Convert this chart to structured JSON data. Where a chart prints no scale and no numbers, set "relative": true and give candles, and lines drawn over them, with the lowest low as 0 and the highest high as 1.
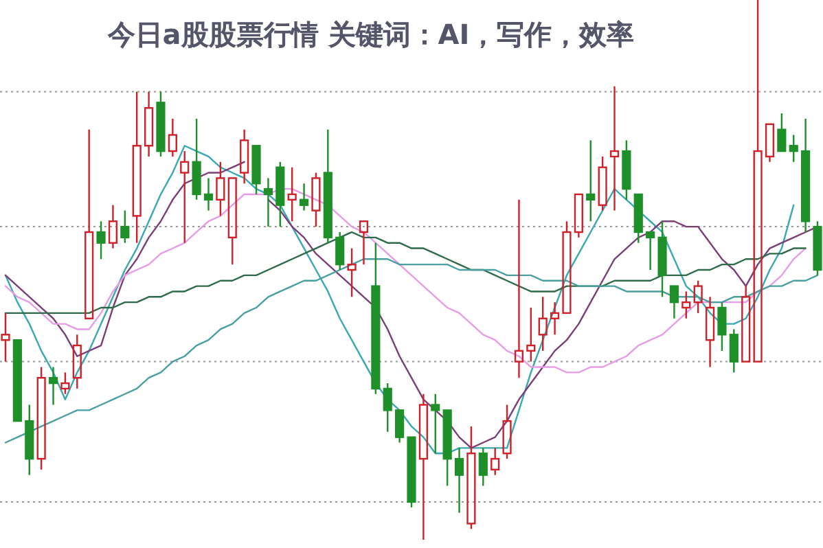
{
  "chart_data": {
    "type": "candlestick",
    "title": "今日a股股票行情 关键词：AI，写作，效率",
    "relative": true,
    "ref_lines": [
      {
        "axis": "y",
        "value": 0.07,
        "line_style": "dotted",
        "color": "#999999"
      },
      {
        "axis": "y",
        "value": 0.33,
        "line_style": "dotted",
        "color": "#999999"
      },
      {
        "axis": "y",
        "value": 0.58,
        "line_style": "dotted",
        "color": "#999999"
      },
      {
        "axis": "y",
        "value": 0.83,
        "line_style": "dotted",
        "color": "#999999"
      }
    ],
    "categories": [
      null,
      null,
      null,
      null,
      null,
      null,
      null,
      null,
      null,
      null,
      null,
      null,
      null,
      null,
      null,
      null,
      null,
      null,
      null,
      null,
      null,
      null,
      null,
      null,
      null,
      null,
      null,
      null,
      null,
      null,
      null,
      null,
      null,
      null,
      null,
      null,
      null,
      null,
      null,
      null,
      null,
      null,
      null,
      null,
      null,
      null,
      null,
      null,
      null,
      null,
      null,
      null,
      null,
      null,
      null,
      null,
      null,
      null,
      null,
      null,
      null,
      null,
      null,
      null,
      null,
      null,
      null,
      null,
      null
    ],
    "ohlc": [
      [
        0.37,
        0.42,
        0.33,
        0.38
      ],
      [
        0.37,
        0.37,
        0.22,
        0.22
      ],
      [
        0.22,
        0.25,
        0.12,
        0.15
      ],
      [
        0.15,
        0.32,
        0.13,
        0.3
      ],
      [
        0.3,
        0.32,
        0.25,
        0.29
      ],
      [
        0.28,
        0.31,
        0.27,
        0.29
      ],
      [
        0.3,
        0.38,
        0.28,
        0.36
      ],
      [
        0.41,
        0.76,
        0.41,
        0.57
      ],
      [
        0.57,
        0.59,
        0.52,
        0.55
      ],
      [
        0.55,
        0.62,
        0.54,
        0.59
      ],
      [
        0.58,
        0.61,
        0.55,
        0.56
      ],
      [
        0.6,
        0.83,
        0.55,
        0.73
      ],
      [
        0.73,
        0.83,
        0.71,
        0.8
      ],
      [
        0.81,
        0.83,
        0.71,
        0.72
      ],
      [
        0.72,
        0.78,
        0.71,
        0.75
      ],
      [
        0.68,
        0.72,
        0.55,
        0.7
      ],
      [
        0.7,
        0.78,
        0.63,
        0.64
      ],
      [
        0.64,
        0.67,
        0.61,
        0.63
      ],
      [
        0.63,
        0.7,
        0.6,
        0.67
      ],
      [
        0.56,
        0.67,
        0.51,
        0.67
      ],
      [
        0.68,
        0.76,
        0.66,
        0.74
      ],
      [
        0.73,
        0.73,
        0.64,
        0.66
      ],
      [
        0.65,
        0.67,
        0.58,
        0.64
      ],
      [
        0.69,
        0.7,
        0.58,
        0.62
      ],
      [
        0.63,
        0.69,
        0.59,
        0.64
      ],
      [
        0.63,
        0.66,
        0.61,
        0.62
      ],
      [
        0.61,
        0.68,
        0.58,
        0.67
      ],
      [
        0.68,
        0.76,
        0.55,
        0.56
      ],
      [
        0.56,
        0.57,
        0.5,
        0.51
      ],
      [
        0.5,
        0.54,
        0.45,
        0.51
      ],
      [
        0.57,
        0.59,
        0.51,
        0.59
      ],
      [
        0.47,
        0.55,
        0.27,
        0.28
      ],
      [
        0.28,
        0.29,
        0.2,
        0.24
      ],
      [
        0.24,
        0.24,
        0.18,
        0.19
      ],
      [
        0.19,
        0.19,
        0.06,
        0.07
      ],
      [
        0.15,
        0.27,
        0,
        0.25
      ],
      [
        0.25,
        0.27,
        0.16,
        0.24
      ],
      [
        0.24,
        0.24,
        0.1,
        0.15
      ],
      [
        0.15,
        0.17,
        0.05,
        0.12
      ],
      [
        0.03,
        0.21,
        0.02,
        0.16
      ],
      [
        0.16,
        0.17,
        0.1,
        0.12
      ],
      [
        0.13,
        0.17,
        0.12,
        0.15
      ],
      [
        0.16,
        0.25,
        0.15,
        0.22
      ],
      [
        0.33,
        0.63,
        0.3,
        0.35
      ],
      [
        0.35,
        0.43,
        0.33,
        0.36
      ],
      [
        0.38,
        0.45,
        0.35,
        0.41
      ],
      [
        0.41,
        0.44,
        0.38,
        0.42
      ],
      [
        0.42,
        0.59,
        0.42,
        0.57
      ],
      [
        0.57,
        0.64,
        0.56,
        0.64
      ],
      [
        0.64,
        0.74,
        0.59,
        0.63
      ],
      [
        0.62,
        0.71,
        0.61,
        0.69
      ],
      [
        0.71,
        0.84,
        0.61,
        0.72
      ],
      [
        0.72,
        0.74,
        0.63,
        0.65
      ],
      [
        0.64,
        0.64,
        0.55,
        0.57
      ],
      [
        0.57,
        0.57,
        0.5,
        0.56
      ],
      [
        0.56,
        0.59,
        0.45,
        0.49
      ],
      [
        0.47,
        0.47,
        0.41,
        0.44
      ],
      [
        0.43,
        0.46,
        0.41,
        0.44
      ],
      [
        0.44,
        0.48,
        0.42,
        0.47
      ],
      [
        0.37,
        0.45,
        0.32,
        0.43
      ],
      [
        0.43,
        0.44,
        0.35,
        0.38
      ],
      [
        0.38,
        0.39,
        0.31,
        0.33
      ],
      [
        0.33,
        0.47,
        0.33,
        0.45
      ],
      [
        0.33,
        1,
        0.33,
        0.72
      ],
      [
        0.71,
        0.77,
        0.7,
        0.77
      ],
      [
        0.76,
        0.79,
        0.72,
        0.72
      ],
      [
        0.73,
        0.75,
        0.7,
        0.72
      ],
      [
        0.72,
        0.78,
        0.57,
        0.59
      ],
      [
        0.58,
        0.59,
        0.49,
        0.5
      ]
    ],
    "series": [
      {
        "type": "line",
        "color": "#38a9b0",
        "values": [
          0.49,
          0.44,
          0.4,
          0.35,
          0.31,
          0.26,
          0.31,
          0.35,
          0.4,
          0.45,
          0.5,
          0.54,
          0.59,
          0.64,
          0.68,
          0.73,
          0.72,
          0.71,
          0.69,
          0.68,
          0.67,
          0.65,
          0.64,
          0.62,
          0.58,
          0.54,
          0.5,
          0.46,
          0.41,
          0.37,
          0.33,
          0.29,
          0.26,
          0.24,
          0.21,
          0.19,
          0.16,
          0.16,
          0.17,
          0.17,
          0.17,
          0.17,
          0.17,
          0.24,
          0.31,
          0.37,
          0.43,
          0.49,
          0.53,
          0.57,
          0.61,
          0.65,
          0.63,
          0.61,
          0.59,
          0.57,
          0.52,
          0.47,
          0.45,
          0.42,
          0.4,
          0.4,
          0.41,
          0.45,
          0.5,
          0.54,
          0.62,
          null,
          null
        ]
      },
      {
        "type": "line",
        "color": "#7b3f78",
        "values": [
          0.49,
          0.47,
          0.45,
          0.43,
          0.41,
          0.38,
          0.34,
          0.35,
          0.36,
          0.43,
          0.49,
          0.52,
          0.56,
          0.59,
          0.63,
          0.66,
          0.67,
          0.68,
          0.68,
          0.69,
          0.7,
          null,
          0.63,
          0.61,
          0.58,
          0.56,
          0.53,
          0.51,
          0.49,
          0.47,
          0.45,
          0.43,
          0.39,
          0.34,
          0.3,
          0.26,
          0.24,
          0.22,
          0.19,
          0.17,
          0.18,
          0.19,
          0.22,
          0.26,
          0.29,
          0.32,
          0.35,
          0.37,
          0.4,
          0.44,
          0.48,
          0.52,
          0.54,
          0.56,
          0.57,
          0.59,
          0.59,
          0.58,
          0.58,
          0.55,
          0.52,
          0.5,
          0.47,
          0.51,
          0.54,
          0.55,
          0.56,
          0.57,
          0.58
        ]
      },
      {
        "type": "line",
        "color": "#e79ce6",
        "values": [
          0.47,
          0.45,
          0.44,
          0.42,
          0.4,
          0.4,
          0.39,
          0.39,
          0.42,
          0.46,
          0.49,
          0.5,
          0.51,
          0.53,
          0.54,
          0.55,
          0.57,
          0.59,
          0.6,
          0.62,
          0.64,
          0.64,
          0.64,
          0.65,
          0.65,
          0.64,
          0.63,
          0.62,
          0.6,
          0.58,
          0.57,
          0.55,
          0.53,
          0.51,
          0.49,
          0.47,
          0.45,
          0.43,
          0.42,
          0.4,
          0.38,
          0.37,
          0.35,
          0.34,
          0.32,
          0.32,
          0.32,
          0.31,
          0.31,
          0.32,
          0.32,
          0.33,
          0.34,
          0.36,
          0.37,
          0.38,
          0.4,
          0.42,
          0.44,
          0.44,
          0.44,
          0.44,
          0.44,
          0.46,
          0.47,
          0.49,
          0.52,
          0.54,
          null
        ]
      },
      {
        "type": "line",
        "color": "#2f6b4a",
        "values": [
          0.42,
          0.42,
          0.42,
          0.42,
          0.42,
          0.42,
          0.42,
          0.42,
          0.43,
          0.43,
          0.44,
          0.44,
          0.45,
          0.45,
          0.46,
          0.46,
          0.47,
          0.47,
          0.48,
          0.48,
          0.49,
          0.49,
          0.5,
          0.51,
          0.52,
          0.53,
          0.54,
          0.55,
          0.56,
          0.57,
          0.56,
          0.56,
          0.55,
          0.55,
          0.54,
          0.54,
          0.53,
          0.52,
          0.51,
          0.5,
          0.5,
          0.49,
          0.48,
          0.47,
          0.46,
          0.46,
          0.46,
          0.47,
          0.47,
          0.47,
          0.47,
          0.48,
          0.48,
          0.48,
          0.48,
          0.49,
          0.49,
          0.49,
          0.5,
          0.5,
          0.51,
          0.51,
          0.52,
          0.52,
          0.53,
          0.53,
          0.54,
          0.54,
          null
        ]
      },
      {
        "type": "line",
        "color": "#4a9fa0",
        "values": [
          0.18,
          0.19,
          0.2,
          0.21,
          0.22,
          0.23,
          0.24,
          0.24,
          0.25,
          0.26,
          0.27,
          0.28,
          0.3,
          0.31,
          0.33,
          0.34,
          0.36,
          0.37,
          0.39,
          0.4,
          0.42,
          0.43,
          0.45,
          0.46,
          0.47,
          0.48,
          0.48,
          0.49,
          0.5,
          0.51,
          0.52,
          0.52,
          0.52,
          0.51,
          0.51,
          0.51,
          0.51,
          0.51,
          0.5,
          0.5,
          0.5,
          0.5,
          0.49,
          0.49,
          0.49,
          0.48,
          0.48,
          0.48,
          0.47,
          0.47,
          0.47,
          0.47,
          0.46,
          0.46,
          0.46,
          0.46,
          0.45,
          0.45,
          0.45,
          0.44,
          0.44,
          0.45,
          0.45,
          0.46,
          0.47,
          0.47,
          0.48,
          0.48,
          0.49
        ]
      }
    ]
  }
}
